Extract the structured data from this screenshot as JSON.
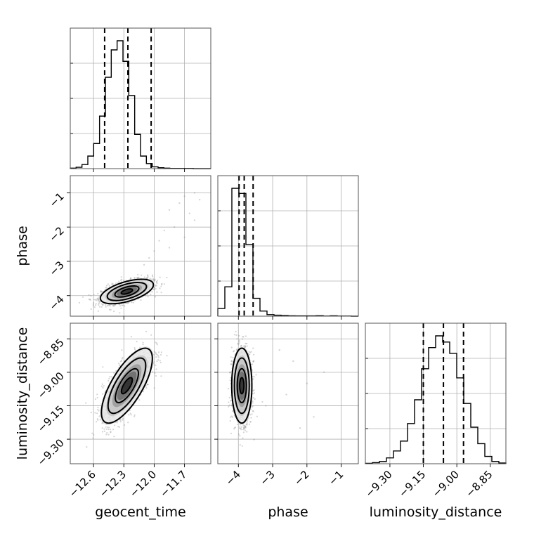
{
  "chart_data": {
    "type": "corner",
    "parameters": [
      {
        "name": "geocent_time",
        "label": "geocent_time",
        "range": [
          -12.83,
          -11.44
        ],
        "ticks": [
          -12.6,
          -12.3,
          -12.0,
          -11.7
        ],
        "tick_labels": [
          "−12.6",
          "−12.3",
          "−12.0",
          "−11.7"
        ],
        "quantiles": [
          -12.49,
          -12.26,
          -12.03
        ],
        "hist_edges": [
          -12.83,
          -11.44
        ],
        "hist_counts": [
          2,
          6,
          18,
          55,
          110,
          230,
          400,
          520,
          560,
          470,
          320,
          150,
          55,
          22,
          8,
          4,
          2,
          1,
          1,
          1,
          1,
          0,
          0,
          0
        ]
      },
      {
        "name": "phase",
        "label": "phase",
        "range": [
          -4.6,
          -0.5
        ],
        "ticks": [
          -4,
          -3,
          -2,
          -1
        ],
        "tick_labels": [
          "−4",
          "−3",
          "−2",
          "−1"
        ],
        "quantiles": [
          -3.98,
          -3.83,
          -3.57
        ],
        "hist_edges": [
          -4.6,
          -0.5
        ],
        "hist_counts": [
          60,
          230,
          1000,
          960,
          560,
          140,
          40,
          12,
          8,
          5,
          3,
          2,
          2,
          2,
          4,
          1,
          3,
          1,
          1,
          0
        ]
      },
      {
        "name": "luminosity_distance",
        "label": "luminosity_distance",
        "range": [
          -9.41,
          -8.78
        ],
        "ticks": [
          -9.3,
          -9.15,
          -9.0,
          -8.85
        ],
        "tick_labels": [
          "−9.30",
          "−9.15",
          "−9.00",
          "−8.85"
        ],
        "quantiles": [
          -9.15,
          -9.06,
          -8.97
        ],
        "hist_edges": [
          -9.41,
          -8.78
        ],
        "hist_counts": [
          1,
          3,
          6,
          16,
          35,
          62,
          110,
          175,
          260,
          318,
          350,
          333,
          302,
          235,
          165,
          100,
          55,
          20,
          6,
          2
        ]
      }
    ],
    "pairs": [
      {
        "x": "geocent_time",
        "y": "phase",
        "mean": [
          -12.27,
          -3.88
        ],
        "sd": [
          0.125,
          0.17
        ],
        "corr": 0.55,
        "extra_points": [
          [
            -11.85,
            -1.5
          ],
          [
            -11.75,
            -1.3
          ],
          [
            -11.7,
            -1.1
          ],
          [
            -11.6,
            -1.0
          ],
          [
            -11.65,
            -1.6
          ],
          [
            -11.9,
            -2.1
          ],
          [
            -11.95,
            -2.4
          ],
          [
            -11.8,
            -2.0
          ],
          [
            -12.0,
            -2.7
          ],
          [
            -12.05,
            -2.9
          ],
          [
            -11.55,
            -1.2
          ],
          [
            -11.7,
            -2.3
          ],
          [
            -11.85,
            -2.6
          ],
          [
            -12.1,
            -3.1
          ],
          [
            -11.6,
            -1.8
          ]
        ]
      },
      {
        "x": "geocent_time",
        "y": "luminosity_distance",
        "mean": [
          -12.27,
          -9.06
        ],
        "sd": [
          0.12,
          0.08
        ],
        "corr": 0.72
      },
      {
        "x": "phase",
        "y": "luminosity_distance",
        "mean": [
          -3.9,
          -9.06
        ],
        "sd": [
          0.14,
          0.08
        ],
        "corr": 0.0,
        "extra_points": [
          [
            -3.0,
            -9.0
          ],
          [
            -2.6,
            -9.1
          ],
          [
            -2.4,
            -8.95
          ],
          [
            -2.0,
            -9.05
          ],
          [
            -1.8,
            -9.2
          ],
          [
            -3.2,
            -9.15
          ],
          [
            -2.8,
            -8.9
          ],
          [
            -1.5,
            -9.0
          ],
          [
            -2.2,
            -9.25
          ]
        ]
      }
    ]
  }
}
